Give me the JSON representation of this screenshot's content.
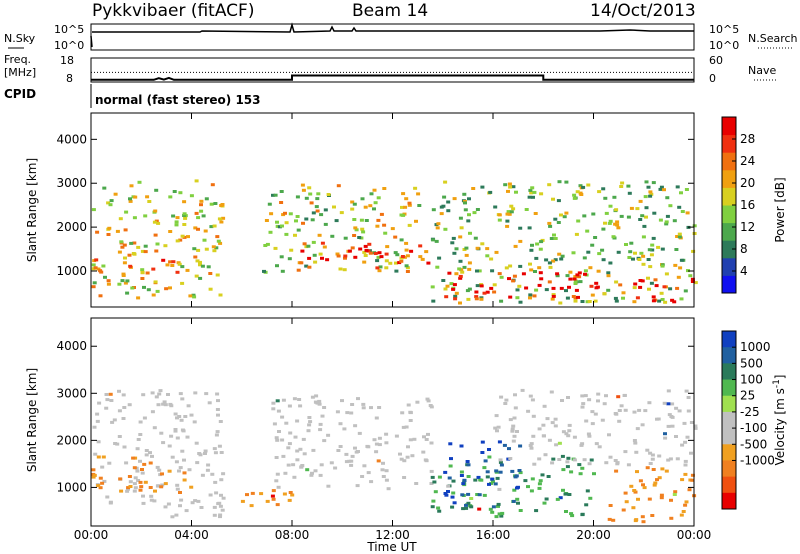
{
  "header": {
    "station": "Pykkvibaer (fitACF)",
    "beam": "Beam 14",
    "date": "14/Oct/2013"
  },
  "sky_panel": {
    "left_label": "N.Sky",
    "right_label": "N.Search",
    "left_ticks": [
      "10^5",
      "10^0"
    ],
    "right_ticks": [
      "10^5",
      "10^0"
    ]
  },
  "freq_panel": {
    "label_line1": "Freq.",
    "label_line2": "[MHz]",
    "left_ticks": [
      "18",
      "8"
    ],
    "right_ticks": [
      "60",
      "0"
    ],
    "right_label": "Nave",
    "freq_mhz": [
      [
        0,
        8.9
      ],
      [
        2.5,
        8.9
      ],
      [
        2.7,
        9.6
      ],
      [
        2.9,
        9.0
      ],
      [
        3.1,
        9.7
      ],
      [
        3.3,
        8.9
      ],
      [
        8.0,
        8.9
      ],
      [
        8.0,
        10.7
      ],
      [
        18.0,
        10.7
      ],
      [
        18.0,
        8.9
      ],
      [
        24,
        8.9
      ]
    ],
    "reference_level_mhz": 12
  },
  "cpid": {
    "label": "CPID",
    "text": "normal (fast stereo) 153"
  },
  "x_axis": {
    "label": "Time UT",
    "ticks": [
      "00:00",
      "04:00",
      "08:00",
      "12:00",
      "16:00",
      "20:00",
      "00:00"
    ]
  },
  "chart_data": [
    {
      "type": "heatmap",
      "name": "power",
      "ylabel": "Slant Range [km]",
      "yticks": [
        "1000",
        "2000",
        "3000",
        "4000"
      ],
      "ylim": [
        180,
        4600
      ],
      "xlim": [
        0,
        24
      ],
      "colorbar": {
        "label": "Power [dB]",
        "ticks": [
          "4",
          "8",
          "12",
          "16",
          "20",
          "24",
          "28"
        ],
        "colors": [
          "#1010f0",
          "#2040b0",
          "#2d7a5a",
          "#4ca84c",
          "#80d040",
          "#d8d020",
          "#f0a010",
          "#f07010",
          "#f03010",
          "#e80000"
        ]
      },
      "regions": [
        {
          "t0": 0.0,
          "t1": 5.2,
          "r0": 400,
          "r1": 3100,
          "level": 0.55
        },
        {
          "t0": 0.0,
          "t1": 4.0,
          "r0": 1000,
          "r1": 1300,
          "level": 0.85
        },
        {
          "t0": 6.8,
          "t1": 13.0,
          "r0": 1000,
          "r1": 3000,
          "level": 0.5
        },
        {
          "t0": 8.0,
          "t1": 13.5,
          "r0": 1100,
          "r1": 1700,
          "level": 0.85
        },
        {
          "t0": 13.5,
          "t1": 24.0,
          "r0": 300,
          "r1": 3100,
          "level": 0.45
        },
        {
          "t0": 14.0,
          "t1": 21.0,
          "r0": 400,
          "r1": 1000,
          "level": 0.95
        },
        {
          "t0": 21.5,
          "t1": 24.0,
          "r0": 300,
          "r1": 900,
          "level": 0.9
        }
      ]
    },
    {
      "type": "heatmap",
      "name": "velocity",
      "ylabel": "Slant Range [km]",
      "yticks": [
        "1000",
        "2000",
        "3000",
        "4000"
      ],
      "ylim": [
        180,
        4600
      ],
      "xlim": [
        0,
        24
      ],
      "colorbar": {
        "label": "Velocity [m s^-1]",
        "ticks": [
          "1000",
          "500",
          "100",
          "25",
          "-25",
          "-100",
          "-500",
          "-1000"
        ],
        "colors": [
          "#1040c0",
          "#2060a0",
          "#2a7a5a",
          "#50b850",
          "#a0e050",
          "#c0c0c0",
          "#c0c0c0",
          "#f0a020",
          "#f08020",
          "#f05010",
          "#e80000"
        ]
      },
      "regions": [
        {
          "t0": 0.0,
          "t1": 5.2,
          "r0": 400,
          "r1": 3100,
          "class": "gray"
        },
        {
          "t0": 0.0,
          "t1": 4.0,
          "r0": 900,
          "r1": 1700,
          "class": "orange"
        },
        {
          "t0": 5.5,
          "t1": 8.0,
          "r0": 500,
          "r1": 1000,
          "class": "orange"
        },
        {
          "t0": 7.0,
          "t1": 13.5,
          "r0": 1000,
          "r1": 3000,
          "class": "gray"
        },
        {
          "t0": 13.5,
          "t1": 20.0,
          "r0": 400,
          "r1": 1700,
          "class": "green"
        },
        {
          "t0": 14.0,
          "t1": 17.0,
          "r0": 600,
          "r1": 2000,
          "class": "blue"
        },
        {
          "t0": 16.0,
          "t1": 24.0,
          "r0": 1500,
          "r1": 3100,
          "class": "gray"
        },
        {
          "t0": 20.5,
          "t1": 24.0,
          "r0": 300,
          "r1": 1500,
          "class": "orange"
        }
      ]
    }
  ]
}
